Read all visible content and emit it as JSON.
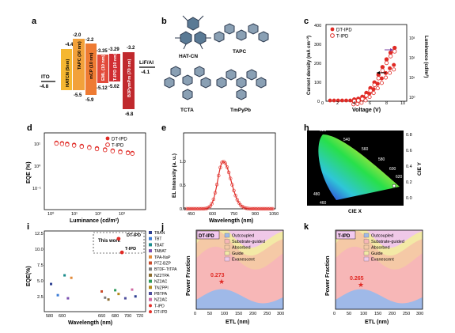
{
  "panels": {
    "a": "a",
    "b": "b",
    "c": "c",
    "d": "d",
    "e": "e",
    "h": "h",
    "i": "i",
    "j": "j",
    "k": "k"
  },
  "panel_a": {
    "ito": "ITO",
    "ito_v": "-4.8",
    "lif": "LiF/Al",
    "lif_v": "-4.1",
    "layers": [
      {
        "name": "HATCN (5nm)",
        "top": "-4.4",
        "bot": "-5.5",
        "color": "#f5b731"
      },
      {
        "name": "TAPC (30 nm)",
        "top": "-2.0",
        "bot": "-5.5",
        "color": "#f2a13a"
      },
      {
        "name": "mCP (10 nm)",
        "top": "-2.2",
        "bot": "-5.9",
        "color": "#ee7b33"
      },
      {
        "name": "EML (10 nm)",
        "top": "-3.35",
        "bot": "-5.12",
        "color": "#e24b3b"
      },
      {
        "name": "T-IPD (30 nm)",
        "top": "-3.29",
        "bot": "-5.02",
        "color": "#d02d32"
      },
      {
        "name": "B3PymPm (70 nm)",
        "top": "-3.2",
        "bot": "-6.8",
        "color": "#c0292d"
      }
    ]
  },
  "panel_b": {
    "m1": "HAT-CN",
    "m2": "TAPC",
    "m3": "TCTA",
    "m4": "TmPyPb"
  },
  "panel_c": {
    "legend": [
      "DT-IPD",
      "T-IPD"
    ],
    "xlabel": "Voltage (V)",
    "ylabel_left": "Current density (mA cm⁻²)",
    "ylabel_right": "Luminance (cd/m²)"
  },
  "panel_d": {
    "legend": [
      "DT-IPD",
      "T-IPD"
    ],
    "xlabel": "Luminance (cd/m²)",
    "ylabel": "EQE (%)"
  },
  "panel_e": {
    "xlabel": "Wavelength (nm)",
    "ylabel": "EL Intensity (a. u.)"
  },
  "panel_h": {
    "xlabel": "CIE X",
    "ylabel": "CIE Y"
  },
  "panel_i": {
    "xlabel": "Wavelength (nm)",
    "ylabel": "EQE(%)",
    "this_work": "This work",
    "legend": [
      "TBAN",
      "TBT",
      "TBAT",
      "TABAT",
      "TPA-NsP",
      "PTZ-BZP",
      "BTDF-TtTPA",
      "NZ2TPA",
      "NZ2AC",
      "TNZPPI",
      "PBTPA",
      "NZ2AC",
      "T-IPD",
      "DT-IPD"
    ],
    "legend_colors": [
      "#2c3e91",
      "#3b7bd6",
      "#1b8c8c",
      "#7a4fb0",
      "#e28a3a",
      "#c94b2b",
      "#7d7d7d",
      "#8b6b2d",
      "#2d9b5a",
      "#b38a1a",
      "#4d4d9c",
      "#d06aa3",
      "#e4322b",
      "#e4322b"
    ],
    "legend_markers": [
      "sq",
      "sq",
      "sq",
      "sq",
      "sq",
      "sq",
      "sq",
      "sq",
      "sq",
      "sq",
      "sq",
      "sq",
      "circ",
      "circ"
    ]
  },
  "panel_j": {
    "tag": "DT-IPD",
    "value": "0.273",
    "xlabel": "ETL (nm)",
    "ylabel": "Power Fraction",
    "legend": [
      "Outcoupled",
      "Substrate-guided",
      "Absorbed",
      "Guide",
      "Evanescent"
    ]
  },
  "panel_k": {
    "tag": "T-IPD",
    "value": "0.265",
    "xlabel": "ETL (nm)",
    "ylabel": "Power Fraction",
    "legend": [
      "Outcoupled",
      "Substrate-guided",
      "Absorbed",
      "Guide",
      "Evanescent"
    ]
  },
  "region_colors": {
    "outcoupled": "#9fb9e8",
    "substrate": "#f7b7b7",
    "absorbed": "#f5c9a6",
    "guide": "#f3e9a6",
    "evanescent": "#f0c8e8"
  },
  "chart_data": [
    {
      "panel": "c",
      "type": "line",
      "xlabel": "Voltage (V)",
      "xlim": [
        0,
        10
      ],
      "series": [
        {
          "name": "DT-IPD",
          "axis": "left",
          "x": [
            3.5,
            4,
            4.5,
            5,
            5.5,
            6,
            6.5,
            7,
            7.5,
            8,
            8.5
          ],
          "y": [
            1,
            5,
            15,
            35,
            60,
            90,
            130,
            170,
            210,
            245,
            270
          ]
        },
        {
          "name": "T-IPD",
          "axis": "left",
          "x": [
            3.5,
            4,
            4.5,
            5,
            5.5,
            6,
            6.5,
            7,
            7.5,
            8,
            8.5
          ],
          "y": [
            1,
            4,
            12,
            30,
            55,
            85,
            120,
            160,
            200,
            235,
            260
          ]
        }
      ]
    },
    {
      "panel": "d",
      "type": "scatter",
      "xlabel": "Luminance (cd/m²)",
      "ylabel": "EQE (%)",
      "xscale": "log",
      "yscale": "log",
      "series": [
        {
          "name": "DT-IPD",
          "x": [
            3,
            5,
            8,
            15,
            30,
            60,
            120,
            250,
            500,
            1000,
            2000,
            3000
          ],
          "y": [
            9.6,
            9.2,
            8.6,
            7.8,
            6.9,
            6.1,
            5.4,
            4.8,
            4.3,
            3.9,
            3.5,
            3.3
          ]
        },
        {
          "name": "T-IPD",
          "x": [
            3,
            5,
            8,
            15,
            30,
            60,
            120,
            250,
            500,
            1000,
            2000,
            3000
          ],
          "y": [
            8.9,
            8.5,
            7.9,
            7.2,
            6.4,
            5.7,
            5.0,
            4.5,
            4.0,
            3.6,
            3.3,
            3.1
          ]
        }
      ]
    },
    {
      "panel": "e",
      "type": "line",
      "xlabel": "Wavelength (nm)",
      "ylabel": "EL Intensity (a. u.)",
      "xlim": [
        400,
        1050
      ],
      "peak": 680
    },
    {
      "panel": "i",
      "type": "scatter",
      "xlabel": "Wavelength (nm)",
      "ylabel": "EQE(%)",
      "xlim": [
        570,
        720
      ],
      "ylim": [
        0,
        12.5
      ],
      "points": [
        {
          "x": 580,
          "y": 4.2
        },
        {
          "x": 590,
          "y": 2.4
        },
        {
          "x": 600,
          "y": 5.6
        },
        {
          "x": 605,
          "y": 1.9
        },
        {
          "x": 610,
          "y": 5.2
        },
        {
          "x": 655,
          "y": 3.0
        },
        {
          "x": 660,
          "y": 2.0
        },
        {
          "x": 665,
          "y": 1.7
        },
        {
          "x": 675,
          "y": 3.2
        },
        {
          "x": 680,
          "y": 2.6
        },
        {
          "x": 690,
          "y": 1.9
        },
        {
          "x": 700,
          "y": 3.3
        },
        {
          "x": 705,
          "y": 2.2
        },
        {
          "x": 680,
          "y": 11.5
        },
        {
          "x": 685,
          "y": 9.3
        }
      ]
    },
    {
      "panel": "j",
      "type": "area",
      "xlabel": "ETL (nm)",
      "ylabel": "Power Fraction",
      "xlim": [
        0,
        300
      ],
      "marked": {
        "x": 70,
        "y": 0.273
      }
    },
    {
      "panel": "k",
      "type": "area",
      "xlabel": "ETL (nm)",
      "ylabel": "Power Fraction",
      "xlim": [
        0,
        300
      ],
      "marked": {
        "x": 70,
        "y": 0.265
      }
    }
  ]
}
